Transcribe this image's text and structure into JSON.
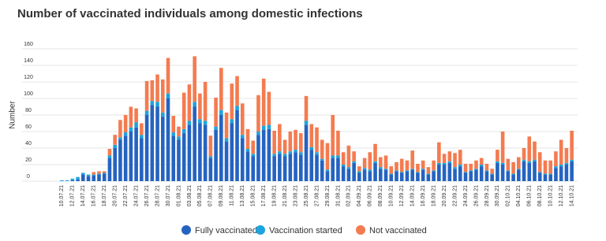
{
  "chart_data": {
    "type": "stacked_bar",
    "title": "Number of vaccinated individuals among domestic infections",
    "y_label": "Number",
    "categories": [
      "10.07.21",
      null,
      "12.07.21",
      null,
      "14.07.21",
      null,
      "16.07.21",
      null,
      "18.07.21",
      null,
      "20.07.21",
      null,
      "22.07.21",
      null,
      "24.07.21",
      null,
      "26.07.21",
      null,
      "28.07.21",
      null,
      "30.07.21",
      null,
      "01.08.21",
      null,
      "03.08.21",
      null,
      "05.08.21",
      null,
      "07.08.21",
      null,
      "09.08.21",
      null,
      "11.08.21",
      null,
      "13.08.21",
      null,
      "15.08.21",
      null,
      "17.08.21",
      null,
      "19.08.21",
      null,
      "21.08.21",
      null,
      "23.08.21",
      null,
      "25.08.21",
      null,
      "27.08.21",
      null,
      "29.08.21",
      null,
      "31.08.21",
      null,
      "02.09.21",
      null,
      "04.09.21",
      null,
      "06.09.21",
      null,
      "08.09.21",
      null,
      "10.09.21",
      null,
      "12.09.21",
      null,
      "14.09.21",
      null,
      "16.09.21",
      null,
      "18.09.21",
      null,
      "20.09.21",
      null,
      "22.09.21",
      null,
      "24.09.21",
      null,
      "26.09.21",
      null,
      "28.09.21",
      null,
      "30.09.21",
      null,
      "02.10.21",
      null,
      "04.10.21",
      null,
      "06.10.21",
      null,
      "08.10.21",
      null,
      "10.10.21",
      null,
      "12.10.21",
      null,
      "14.10.21"
    ],
    "series": [
      {
        "name": "Fully vaccinated",
        "color": "#2563c0",
        "values": [
          0,
          0,
          1,
          2,
          8,
          6,
          7,
          8,
          9,
          28,
          40,
          50,
          55,
          60,
          65,
          52,
          80,
          92,
          90,
          78,
          100,
          55,
          50,
          58,
          68,
          90,
          70,
          68,
          28,
          62,
          80,
          48,
          70,
          86,
          52,
          36,
          30,
          56,
          62,
          63,
          30,
          33,
          30,
          33,
          35,
          32,
          68,
          38,
          32,
          25,
          12,
          28,
          28,
          18,
          15,
          22,
          10,
          14,
          12,
          22,
          15,
          14,
          8,
          12,
          10,
          12,
          14,
          10,
          14,
          8,
          12,
          20,
          20,
          22,
          15,
          18,
          10,
          12,
          14,
          18,
          12,
          8,
          22,
          20,
          12,
          8,
          14,
          24,
          22,
          24,
          10,
          8,
          8,
          16,
          18,
          20,
          24
        ]
      },
      {
        "name": "Vaccination started",
        "color": "#1ea3dd",
        "values": [
          1,
          1,
          2,
          3,
          2,
          2,
          1,
          1,
          1,
          3,
          4,
          3,
          4,
          5,
          6,
          4,
          5,
          5,
          6,
          5,
          6,
          4,
          4,
          5,
          5,
          6,
          5,
          5,
          2,
          4,
          6,
          4,
          5,
          5,
          4,
          3,
          3,
          4,
          5,
          5,
          3,
          3,
          3,
          3,
          3,
          3,
          5,
          3,
          3,
          2,
          2,
          3,
          3,
          2,
          2,
          2,
          2,
          2,
          2,
          2,
          2,
          1,
          1,
          1,
          1,
          1,
          1,
          1,
          1,
          1,
          1,
          2,
          2,
          2,
          2,
          2,
          1,
          1,
          1,
          2,
          1,
          1,
          2,
          2,
          1,
          1,
          1,
          2,
          2,
          2,
          1,
          1,
          1,
          2,
          2,
          2,
          2
        ]
      },
      {
        "name": "Not vaccinated",
        "color": "#f47b50",
        "values": [
          0,
          0,
          0,
          0,
          0,
          0,
          3,
          3,
          2,
          8,
          12,
          21,
          21,
          25,
          17,
          14,
          36,
          25,
          33,
          40,
          43,
          20,
          12,
          44,
          44,
          55,
          31,
          47,
          25,
          35,
          51,
          31,
          43,
          36,
          38,
          24,
          16,
          44,
          57,
          40,
          28,
          33,
          17,
          24,
          24,
          23,
          30,
          28,
          30,
          23,
          32,
          49,
          30,
          15,
          26,
          12,
          6,
          12,
          21,
          21,
          12,
          16,
          9,
          10,
          16,
          12,
          22,
          10,
          10,
          8,
          12,
          25,
          11,
          12,
          17,
          18,
          10,
          8,
          10,
          8,
          8,
          6,
          14,
          38,
          14,
          14,
          14,
          14,
          30,
          22,
          24,
          16,
          16,
          18,
          30,
          18,
          35
        ]
      }
    ],
    "ylim": [
      0,
      160
    ],
    "yticks": [
      0,
      20,
      40,
      60,
      80,
      100,
      120,
      140,
      160
    ],
    "grid": true
  }
}
